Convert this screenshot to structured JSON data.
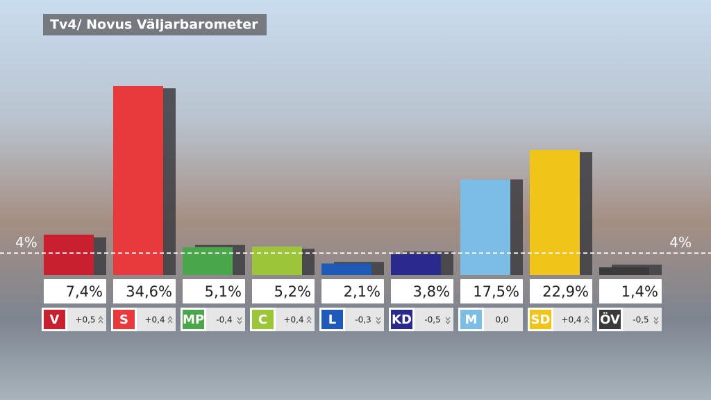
{
  "chart_data": {
    "type": "bar",
    "title": "Tv4/ Novus Väljarbarometer",
    "categories": [
      "V",
      "S",
      "MP",
      "C",
      "L",
      "KD",
      "M",
      "SD",
      "ÖV"
    ],
    "values": [
      7.4,
      34.6,
      5.1,
      5.2,
      2.1,
      3.8,
      17.5,
      22.9,
      1.4
    ],
    "value_labels": [
      "7,4%",
      "34,6%",
      "5,1%",
      "5,2%",
      "2,1%",
      "3,8%",
      "17,5%",
      "22,9%",
      "1,4%"
    ],
    "colors": [
      "#c8202f",
      "#e83a3c",
      "#4aa64a",
      "#9cc53a",
      "#1f5ab8",
      "#2a2a8c",
      "#7cbde6",
      "#f0c419",
      "#3a3a3a"
    ],
    "changes": [
      0.5,
      0.4,
      -0.4,
      0.4,
      -0.3,
      -0.5,
      0.0,
      0.4,
      -0.5
    ],
    "change_labels": [
      "+0,5",
      "+0,4",
      "-0,4",
      "+0,4",
      "-0,3",
      "-0,5",
      "0,0",
      "+0,4",
      "-0,5"
    ],
    "threshold": 4,
    "threshold_label": "4%",
    "ylim": [
      0,
      36
    ]
  }
}
